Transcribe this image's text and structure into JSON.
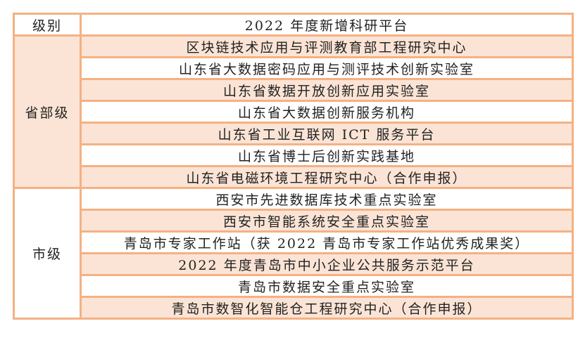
{
  "header": {
    "level": "级别",
    "platform": "2022 年度新增科研平台"
  },
  "groups": [
    {
      "level": "省部级",
      "items": [
        "区块链技术应用与评测教育部工程研究中心",
        "山东省大数据密码应用与测评技术创新实验室",
        "山东省数据开放创新应用实验室",
        "山东省大数据创新服务机构",
        "山东省工业互联网 ICT 服务平台",
        "山东省博士后创新实践基地",
        "山东省电磁环境工程研究中心（合作申报）"
      ]
    },
    {
      "level": "市级",
      "items": [
        "西安市先进数据库技术重点实验室",
        "西安市智能系统安全重点实验室",
        "青岛市专家工作站（获 2022 青岛市专家工作站优秀成果奖）",
        "2022 年度青岛市中小企业公共服务示范平台",
        "青岛市数据安全重点实验室",
        "青岛市数智化智能仓工程研究中心（合作申报）"
      ]
    }
  ],
  "colors": {
    "border": "#f4b183",
    "shade": "#fbe4d5"
  }
}
